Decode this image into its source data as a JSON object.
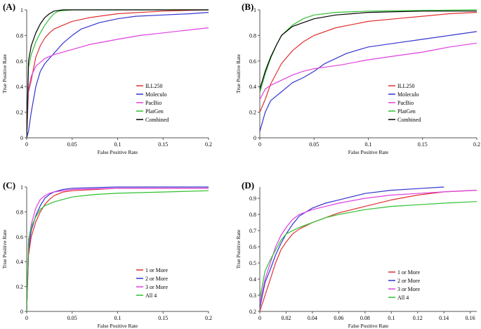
{
  "chart_data": [
    {
      "panel": "(A)",
      "type": "line",
      "xlabel": "False Positive Rate",
      "ylabel": "True Positive Rate",
      "xlim": [
        0,
        0.2
      ],
      "ylim": [
        0,
        1
      ],
      "xticks": [
        0,
        0.05,
        0.1,
        0.15,
        0.2
      ],
      "xtick_labels": [
        "0",
        "0.05",
        "0.1",
        "0.15",
        "0.2"
      ],
      "yticks": [
        0,
        0.2,
        0.4,
        0.6,
        0.8,
        1
      ],
      "ytick_labels": [
        "0",
        "0.2",
        "0.4",
        "0.6",
        "0.8",
        "1"
      ],
      "legend_position": "lower-right",
      "series": [
        {
          "name": "ILL250",
          "color": "#e03030",
          "x": [
            0,
            0.002,
            0.005,
            0.008,
            0.01,
            0.015,
            0.02,
            0.025,
            0.03,
            0.04,
            0.05,
            0.07,
            0.1,
            0.15,
            0.2
          ],
          "y": [
            0,
            0.36,
            0.45,
            0.56,
            0.63,
            0.72,
            0.78,
            0.82,
            0.85,
            0.88,
            0.91,
            0.94,
            0.97,
            0.99,
            1.0
          ]
        },
        {
          "name": "Moleculo",
          "color": "#3434d0",
          "x": [
            0,
            0.002,
            0.005,
            0.01,
            0.015,
            0.02,
            0.03,
            0.04,
            0.05,
            0.06,
            0.08,
            0.1,
            0.12,
            0.15,
            0.18,
            0.2
          ],
          "y": [
            0,
            0.05,
            0.2,
            0.4,
            0.52,
            0.58,
            0.66,
            0.74,
            0.8,
            0.85,
            0.9,
            0.93,
            0.95,
            0.96,
            0.97,
            0.98
          ]
        },
        {
          "name": "PacBio",
          "color": "#e040e0",
          "x": [
            0,
            0.002,
            0.005,
            0.01,
            0.02,
            0.03,
            0.05,
            0.07,
            0.1,
            0.125,
            0.15,
            0.175,
            0.2
          ],
          "y": [
            0,
            0.38,
            0.48,
            0.56,
            0.62,
            0.65,
            0.69,
            0.73,
            0.77,
            0.8,
            0.82,
            0.84,
            0.86
          ]
        },
        {
          "name": "PlatGen",
          "color": "#30c030",
          "x": [
            0,
            0.002,
            0.005,
            0.01,
            0.015,
            0.02,
            0.025,
            0.03,
            0.035,
            0.05,
            0.1,
            0.15,
            0.2
          ],
          "y": [
            0,
            0.55,
            0.65,
            0.75,
            0.82,
            0.88,
            0.93,
            0.97,
            0.99,
            1.0,
            1.0,
            1.0,
            1.0
          ]
        },
        {
          "name": "Combined",
          "color": "#000000",
          "x": [
            0,
            0.002,
            0.005,
            0.01,
            0.015,
            0.02,
            0.025,
            0.03,
            0.04,
            0.05,
            0.1,
            0.15,
            0.2
          ],
          "y": [
            0,
            0.6,
            0.72,
            0.82,
            0.89,
            0.94,
            0.97,
            0.99,
            1.0,
            1.0,
            1.0,
            1.0,
            1.0
          ]
        }
      ]
    },
    {
      "panel": "(B)",
      "type": "line",
      "xlabel": "False Positive Rate",
      "ylabel": "True Positive Rate",
      "xlim": [
        0,
        0.2
      ],
      "ylim": [
        0,
        1
      ],
      "xticks": [
        0,
        0.05,
        0.1,
        0.15,
        0.2
      ],
      "xtick_labels": [
        "0",
        "0.05",
        "0.1",
        "0.15",
        "0.2"
      ],
      "yticks": [
        0,
        0.2,
        0.4,
        0.6,
        0.8,
        1
      ],
      "ytick_labels": [
        "0",
        "0.2",
        "0.4",
        "0.6",
        "0.8",
        "1"
      ],
      "legend_position": "lower-right",
      "series": [
        {
          "name": "ILL250",
          "color": "#e03030",
          "x": [
            0,
            0.005,
            0.01,
            0.02,
            0.03,
            0.04,
            0.05,
            0.07,
            0.1,
            0.125,
            0.15,
            0.175,
            0.2
          ],
          "y": [
            0.2,
            0.3,
            0.42,
            0.58,
            0.68,
            0.75,
            0.8,
            0.86,
            0.91,
            0.93,
            0.95,
            0.97,
            0.98
          ]
        },
        {
          "name": "Moleculo",
          "color": "#3434d0",
          "x": [
            0,
            0.005,
            0.01,
            0.02,
            0.03,
            0.04,
            0.05,
            0.06,
            0.08,
            0.1,
            0.125,
            0.15,
            0.175,
            0.2
          ],
          "y": [
            0.05,
            0.2,
            0.29,
            0.36,
            0.43,
            0.47,
            0.52,
            0.58,
            0.66,
            0.71,
            0.74,
            0.77,
            0.8,
            0.83
          ]
        },
        {
          "name": "PacBio",
          "color": "#e040e0",
          "x": [
            0,
            0.005,
            0.01,
            0.02,
            0.03,
            0.04,
            0.05,
            0.075,
            0.1,
            0.125,
            0.15,
            0.175,
            0.2
          ],
          "y": [
            0.3,
            0.38,
            0.41,
            0.45,
            0.49,
            0.52,
            0.54,
            0.57,
            0.61,
            0.64,
            0.67,
            0.71,
            0.74
          ]
        },
        {
          "name": "PlatGen",
          "color": "#30c030",
          "x": [
            0,
            0.005,
            0.01,
            0.015,
            0.02,
            0.03,
            0.04,
            0.05,
            0.07,
            0.1,
            0.15,
            0.2
          ],
          "y": [
            0.35,
            0.5,
            0.62,
            0.72,
            0.8,
            0.88,
            0.93,
            0.96,
            0.98,
            0.99,
            0.995,
            1.0
          ]
        },
        {
          "name": "Combined",
          "color": "#000000",
          "x": [
            0,
            0.005,
            0.01,
            0.015,
            0.02,
            0.03,
            0.04,
            0.05,
            0.07,
            0.1,
            0.15,
            0.2
          ],
          "y": [
            0.38,
            0.52,
            0.63,
            0.72,
            0.8,
            0.87,
            0.9,
            0.93,
            0.96,
            0.98,
            0.99,
            0.99
          ]
        }
      ]
    },
    {
      "panel": "(C)",
      "type": "line",
      "xlabel": "False Positive Rate",
      "ylabel": "True Positive Rate",
      "xlim": [
        0,
        0.2
      ],
      "ylim": [
        0,
        1
      ],
      "xticks": [
        0,
        0.05,
        0.1,
        0.15,
        0.2
      ],
      "xtick_labels": [
        "0",
        "0.05",
        "0.1",
        "0.15",
        "0.2"
      ],
      "yticks": [
        0,
        0.2,
        0.4,
        0.6,
        0.8,
        1
      ],
      "ytick_labels": [
        "0",
        "0.2",
        "0.4",
        "0.6",
        "0.8",
        "1"
      ],
      "legend_position": "lower-right",
      "series": [
        {
          "name": "1 or More",
          "color": "#e03030",
          "x": [
            0,
            0.002,
            0.005,
            0.01,
            0.015,
            0.02,
            0.025,
            0.03,
            0.04,
            0.05,
            0.1,
            0.15,
            0.2
          ],
          "y": [
            0,
            0.45,
            0.6,
            0.72,
            0.8,
            0.86,
            0.9,
            0.93,
            0.96,
            0.97,
            0.99,
            0.99,
            0.99
          ]
        },
        {
          "name": "2 or More",
          "color": "#3434d0",
          "x": [
            0,
            0.002,
            0.005,
            0.01,
            0.015,
            0.02,
            0.025,
            0.03,
            0.04,
            0.05,
            0.1,
            0.15,
            0.2
          ],
          "y": [
            0,
            0.5,
            0.65,
            0.77,
            0.85,
            0.91,
            0.94,
            0.96,
            0.98,
            0.99,
            1.0,
            1.0,
            1.0
          ]
        },
        {
          "name": "3 or More",
          "color": "#e040e0",
          "x": [
            0,
            0.002,
            0.005,
            0.01,
            0.015,
            0.02,
            0.025,
            0.03,
            0.04,
            0.05,
            0.1,
            0.15,
            0.2
          ],
          "y": [
            0,
            0.55,
            0.7,
            0.83,
            0.9,
            0.93,
            0.95,
            0.96,
            0.97,
            0.98,
            0.99,
            0.99,
            0.99
          ]
        },
        {
          "name": "All 4",
          "color": "#30c030",
          "x": [
            0,
            0.002,
            0.005,
            0.01,
            0.015,
            0.02,
            0.03,
            0.04,
            0.05,
            0.075,
            0.1,
            0.15,
            0.2
          ],
          "y": [
            0,
            0.58,
            0.68,
            0.76,
            0.82,
            0.85,
            0.88,
            0.9,
            0.92,
            0.94,
            0.95,
            0.96,
            0.97
          ]
        }
      ]
    },
    {
      "panel": "(D)",
      "type": "line",
      "xlabel": "False Positive Rate",
      "ylabel": "True Positive Rate",
      "xlim": [
        0,
        0.165
      ],
      "ylim": [
        0.2,
        0.97
      ],
      "xticks": [
        0,
        0.02,
        0.04,
        0.06,
        0.08,
        0.1,
        0.12,
        0.14,
        0.16
      ],
      "xtick_labels": [
        "0",
        "0.02",
        "0.04",
        "0.06",
        "0.08",
        "0.1",
        "0.12",
        "0.14",
        "0.16"
      ],
      "yticks": [
        0.2,
        0.3,
        0.4,
        0.5,
        0.6,
        0.7,
        0.8,
        0.9
      ],
      "ytick_labels": [
        "0.2",
        "0.3",
        "0.4",
        "0.5",
        "0.6",
        "0.7",
        "0.8",
        "0.9"
      ],
      "legend_position": "lower-right",
      "series": [
        {
          "name": "1 or More",
          "color": "#e03030",
          "x": [
            0,
            0.004,
            0.008,
            0.012,
            0.016,
            0.02,
            0.025,
            0.03,
            0.04,
            0.05,
            0.06,
            0.08,
            0.1,
            0.12,
            0.14,
            0.165
          ],
          "y": [
            0.2,
            0.3,
            0.4,
            0.5,
            0.58,
            0.63,
            0.68,
            0.71,
            0.75,
            0.78,
            0.81,
            0.85,
            0.89,
            0.92,
            0.94,
            0.95
          ]
        },
        {
          "name": "2 or More",
          "color": "#3434d0",
          "x": [
            0,
            0.004,
            0.008,
            0.012,
            0.016,
            0.02,
            0.025,
            0.03,
            0.04,
            0.05,
            0.06,
            0.08,
            0.1,
            0.12,
            0.14
          ],
          "y": [
            0.22,
            0.38,
            0.46,
            0.55,
            0.62,
            0.68,
            0.74,
            0.79,
            0.84,
            0.87,
            0.89,
            0.93,
            0.95,
            0.96,
            0.97
          ]
        },
        {
          "name": "3 or More",
          "color": "#e040e0",
          "x": [
            0,
            0.004,
            0.008,
            0.012,
            0.016,
            0.02,
            0.025,
            0.03,
            0.04,
            0.05,
            0.06,
            0.08,
            0.1,
            0.12,
            0.14,
            0.165
          ],
          "y": [
            0.25,
            0.4,
            0.5,
            0.6,
            0.67,
            0.72,
            0.77,
            0.8,
            0.83,
            0.85,
            0.87,
            0.9,
            0.92,
            0.93,
            0.94,
            0.95
          ]
        },
        {
          "name": "All 4",
          "color": "#30c030",
          "x": [
            0,
            0.004,
            0.008,
            0.012,
            0.016,
            0.02,
            0.025,
            0.03,
            0.04,
            0.05,
            0.06,
            0.08,
            0.1,
            0.12,
            0.14,
            0.165
          ],
          "y": [
            0.28,
            0.45,
            0.52,
            0.58,
            0.64,
            0.68,
            0.7,
            0.72,
            0.75,
            0.78,
            0.8,
            0.83,
            0.85,
            0.86,
            0.87,
            0.88
          ]
        }
      ]
    }
  ]
}
